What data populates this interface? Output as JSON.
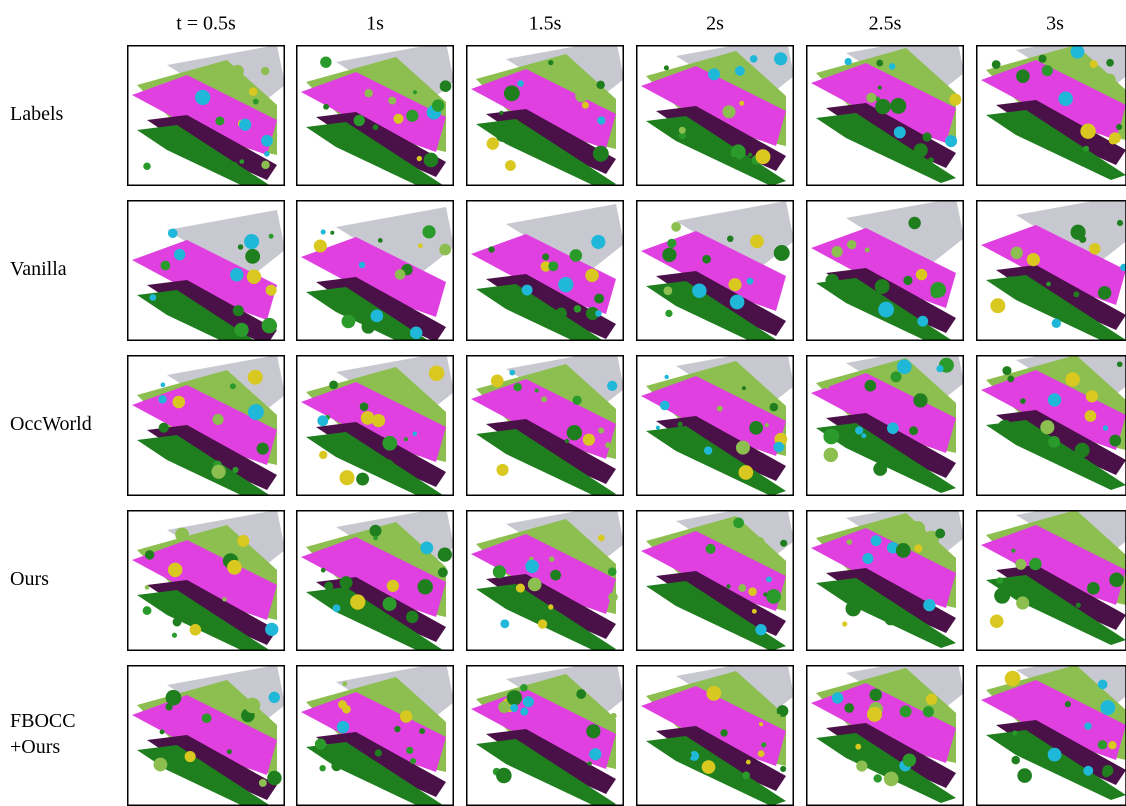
{
  "columns": [
    "t = 0.5s",
    "1s",
    "1.5s",
    "2s",
    "2.5s",
    "3s"
  ],
  "rows": [
    {
      "label": [
        "Labels"
      ]
    },
    {
      "label": [
        "Vanilla"
      ]
    },
    {
      "label": [
        "OccWorld"
      ]
    },
    {
      "label": [
        "Ours"
      ]
    },
    {
      "label": [
        "FBOCC",
        "+Ours"
      ]
    }
  ]
}
